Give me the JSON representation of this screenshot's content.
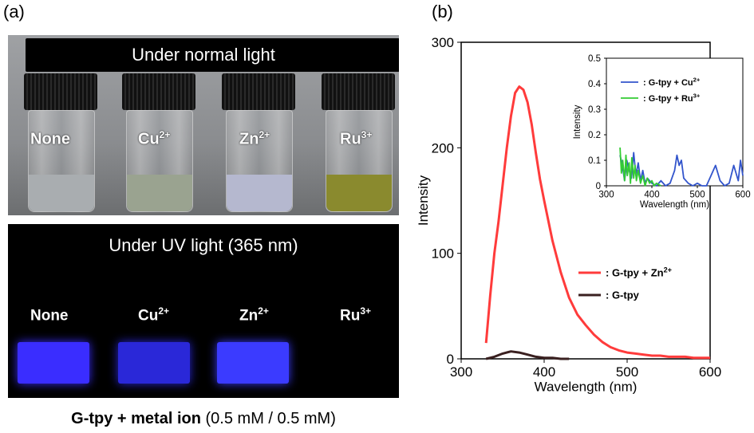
{
  "panel_labels": {
    "a": "(a)",
    "b": "(b)"
  },
  "photo": {
    "normal_title": "Under normal light",
    "uv_title": "Under UV light (365 nm)",
    "vials": [
      {
        "name": "None",
        "sup": "",
        "liquid_color": "#a9adb0",
        "uv_glow": "#3a2dff"
      },
      {
        "name": "Cu",
        "sup": "2+",
        "liquid_color": "#9aa390",
        "uv_glow": "#2a28d8"
      },
      {
        "name": "Zn",
        "sup": "2+",
        "liquid_color": "#b5b8cf",
        "uv_glow": "#3b3bff"
      },
      {
        "name": "Ru",
        "sup": "3+",
        "liquid_color": "#8a8a2e",
        "uv_glow": ""
      }
    ],
    "caption_bold": "G-tpy + metal ion",
    "caption_rest": " (0.5 mM / 0.5 mM)"
  },
  "chart_data": [
    {
      "type": "line",
      "title": "",
      "xlabel": "Wavelength (nm)",
      "ylabel": "Intensity",
      "xlim": [
        300,
        600
      ],
      "ylim": [
        0,
        300
      ],
      "xticks": [
        "300",
        "400",
        "500",
        "600"
      ],
      "yticks": [
        "0",
        "100",
        "200",
        "300"
      ],
      "legend_position": "center-right",
      "series": [
        {
          "name": ": G-tpy + Zn",
          "sup": "2+",
          "color": "#ff3b3b",
          "x": [
            330,
            335,
            340,
            345,
            350,
            355,
            360,
            365,
            370,
            375,
            380,
            385,
            390,
            395,
            400,
            410,
            420,
            430,
            440,
            450,
            460,
            470,
            480,
            490,
            500,
            510,
            520,
            530,
            540,
            550,
            560,
            570,
            580,
            590,
            600
          ],
          "y": [
            15,
            60,
            100,
            130,
            165,
            200,
            230,
            252,
            258,
            255,
            243,
            222,
            195,
            170,
            150,
            112,
            82,
            58,
            42,
            32,
            23,
            16,
            11,
            8,
            6,
            5,
            4,
            3,
            3,
            2,
            2,
            2,
            1,
            1,
            1
          ]
        },
        {
          "name": ": G-tpy",
          "sup": "",
          "color": "#3a2020",
          "x": [
            330,
            340,
            350,
            360,
            370,
            380,
            390,
            400,
            410,
            420,
            430
          ],
          "y": [
            0,
            2,
            5,
            7,
            6,
            4,
            2,
            1,
            1,
            0,
            0
          ]
        }
      ]
    },
    {
      "type": "line",
      "title": "",
      "xlabel": "Wavelength (nm)",
      "ylabel": "Intensity",
      "xlim": [
        300,
        600
      ],
      "ylim": [
        0,
        0.5
      ],
      "xticks": [
        "300",
        "400",
        "500",
        "600"
      ],
      "yticks": [
        "0",
        "0.1",
        "0.2",
        "0.3",
        "0.4",
        "0.5"
      ],
      "legend_position": "top-right",
      "series": [
        {
          "name": ": G-tpy + Cu",
          "sup": "2+",
          "color": "#3355cc",
          "x": [
            330,
            335,
            340,
            345,
            350,
            355,
            360,
            365,
            370,
            375,
            380,
            385,
            390,
            400,
            410,
            420,
            430,
            440,
            450,
            455,
            460,
            465,
            470,
            480,
            490,
            500,
            510,
            520,
            530,
            540,
            550,
            560,
            570,
            580,
            590,
            595,
            600
          ],
          "y": [
            0.12,
            0.08,
            0.02,
            0.1,
            0.06,
            0.03,
            0.13,
            0.04,
            0.09,
            0.02,
            0.06,
            0.01,
            0.03,
            0.01,
            0.0,
            0.02,
            0.0,
            0.01,
            0.06,
            0.12,
            0.08,
            0.1,
            0.03,
            0.01,
            0.0,
            0.01,
            0.0,
            0.0,
            0.04,
            0.08,
            0.02,
            0.0,
            0.01,
            0.08,
            0.02,
            0.1,
            0.04
          ]
        },
        {
          "name": ": G-tpy + Ru",
          "sup": "3+",
          "color": "#33cc33",
          "x": [
            330,
            333,
            336,
            340,
            343,
            346,
            350,
            353,
            356,
            360,
            363,
            366,
            370,
            375,
            380,
            385,
            390,
            395,
            400,
            405,
            410,
            420
          ],
          "y": [
            0.15,
            0.05,
            0.1,
            0.02,
            0.12,
            0.04,
            0.09,
            0.01,
            0.11,
            0.03,
            0.08,
            0.02,
            0.06,
            0.01,
            0.04,
            0.0,
            0.03,
            0.01,
            0.02,
            0.0,
            0.01,
            0.0
          ]
        }
      ]
    }
  ]
}
